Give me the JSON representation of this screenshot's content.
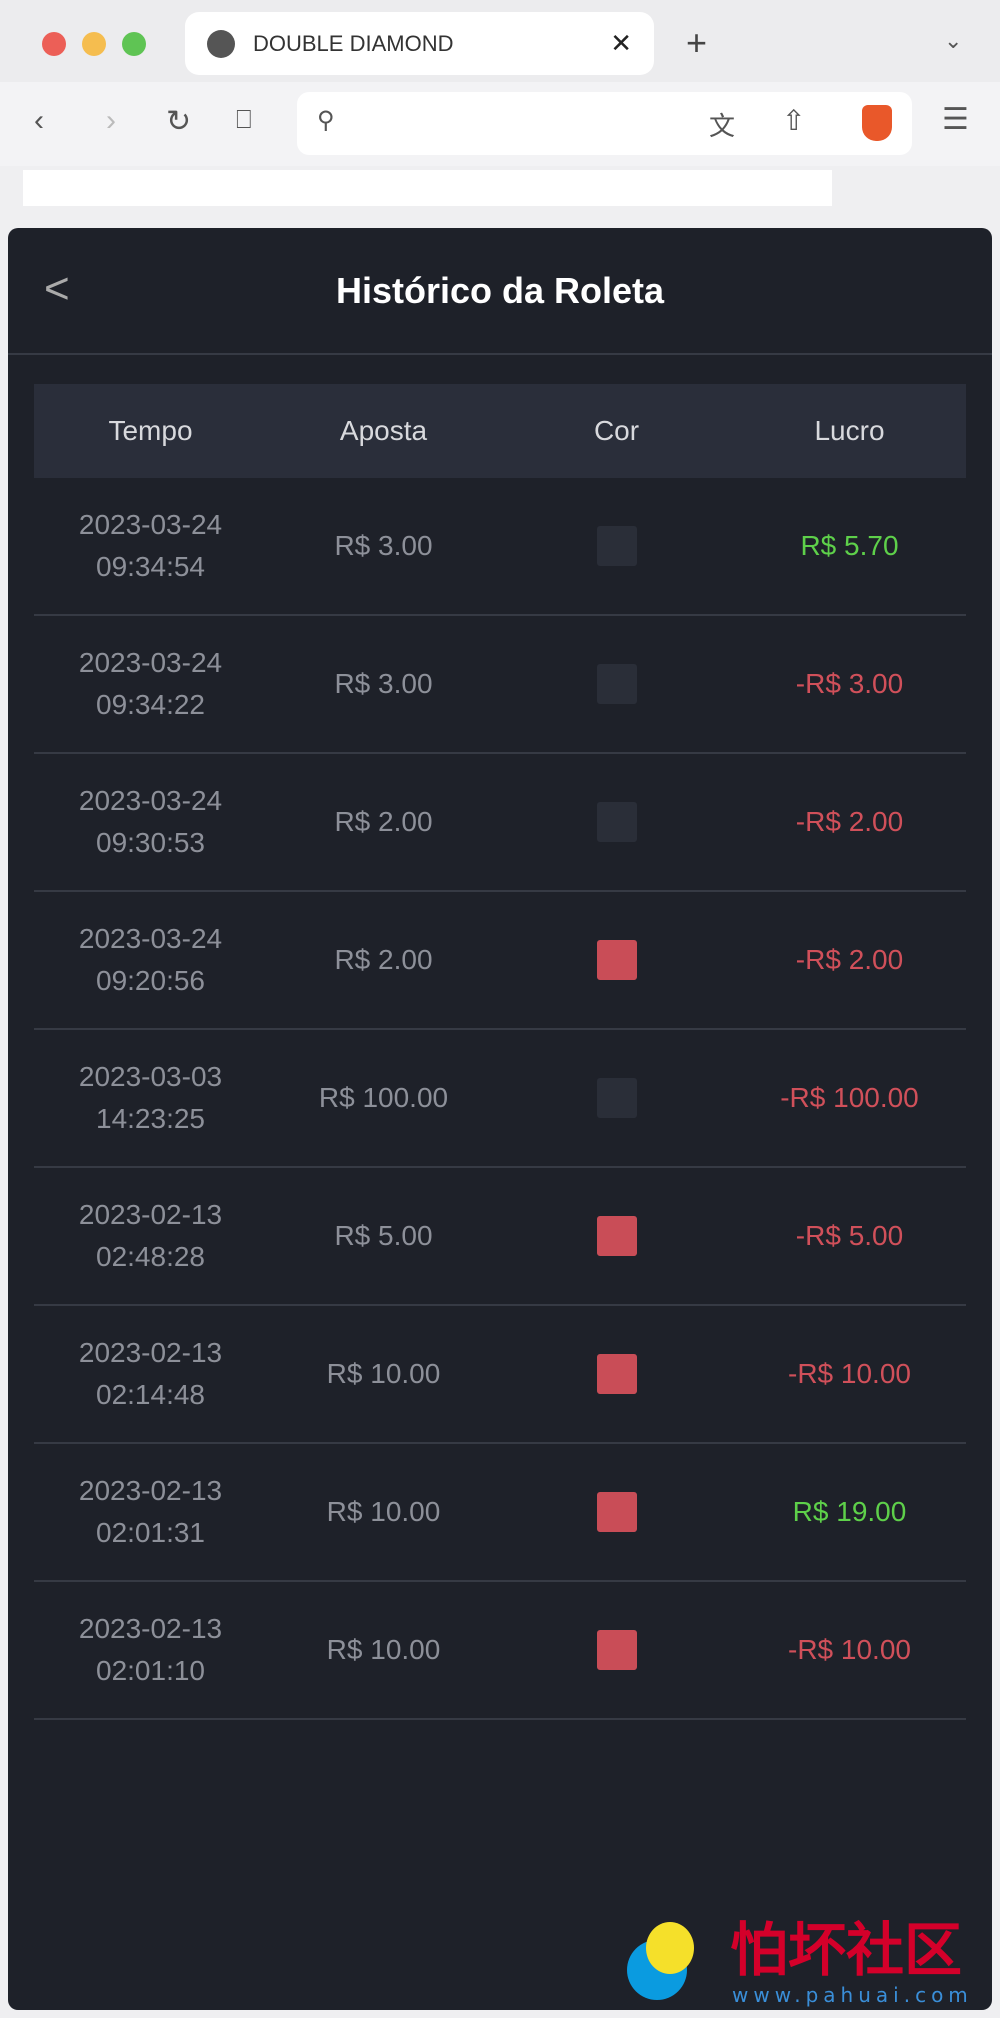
{
  "browser": {
    "tab_title": "DOUBLE DIAMOND",
    "address": ""
  },
  "page": {
    "title": "Histórico da Roleta"
  },
  "table": {
    "headers": [
      "Tempo",
      "Aposta",
      "Cor",
      "Lucro"
    ],
    "rows": [
      {
        "time": "2023-03-24 09:34:54",
        "bet": "R$ 3.00",
        "color": "black",
        "profit": "R$ 5.70",
        "win": true
      },
      {
        "time": "2023-03-24 09:34:22",
        "bet": "R$ 3.00",
        "color": "black",
        "profit": "-R$ 3.00",
        "win": false
      },
      {
        "time": "2023-03-24 09:30:53",
        "bet": "R$ 2.00",
        "color": "black",
        "profit": "-R$ 2.00",
        "win": false
      },
      {
        "time": "2023-03-24 09:20:56",
        "bet": "R$ 2.00",
        "color": "red",
        "profit": "-R$ 2.00",
        "win": false
      },
      {
        "time": "2023-03-03 14:23:25",
        "bet": "R$ 100.00",
        "color": "black",
        "profit": "-R$ 100.00",
        "win": false
      },
      {
        "time": "2023-02-13 02:48:28",
        "bet": "R$ 5.00",
        "color": "red",
        "profit": "-R$ 5.00",
        "win": false
      },
      {
        "time": "2023-02-13 02:14:48",
        "bet": "R$ 10.00",
        "color": "red",
        "profit": "-R$ 10.00",
        "win": false
      },
      {
        "time": "2023-02-13 02:01:31",
        "bet": "R$ 10.00",
        "color": "red",
        "profit": "R$ 19.00",
        "win": true
      },
      {
        "time": "2023-02-13 02:01:10",
        "bet": "R$ 10.00",
        "color": "red",
        "profit": "-R$ 10.00",
        "win": false
      }
    ]
  },
  "colors": {
    "win": "#5ed04a",
    "loss": "#d0505a",
    "red_square": "#c94d57",
    "black_square": "#2a2e38"
  },
  "watermark": {
    "text": "怕坏社区",
    "url": "www.pahuai.com"
  }
}
